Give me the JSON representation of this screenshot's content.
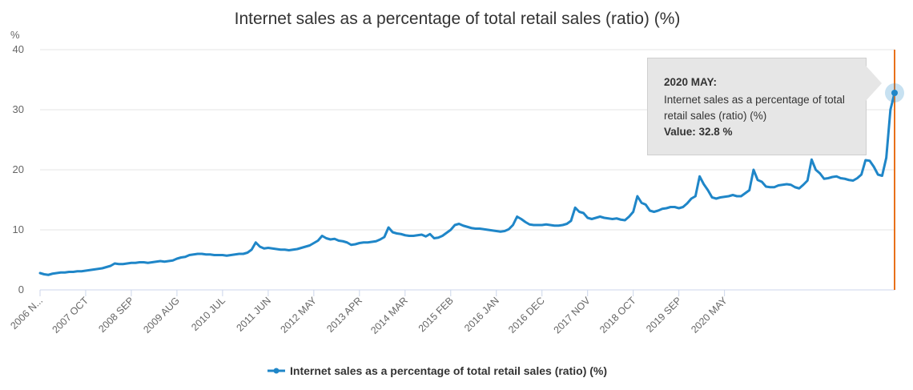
{
  "chart_data": {
    "type": "line",
    "title": "Internet sales as a percentage of total retail sales (ratio) (%)",
    "ylabel": "%",
    "ylim": [
      0,
      40
    ],
    "yticks": [
      0,
      10,
      20,
      30,
      40
    ],
    "grid": true,
    "legend_position": "bottom",
    "xticks": [
      "2006 N...",
      "2007 OCT",
      "2008 SEP",
      "2009 AUG",
      "2010 JUL",
      "2011 JUN",
      "2012 MAY",
      "2013 APR",
      "2014 MAR",
      "2015 FEB",
      "2016 JAN",
      "2016 DEC",
      "2017 NOV",
      "2018 OCT",
      "2019 SEP",
      "2020 MAY"
    ],
    "series": [
      {
        "name": "Internet sales as a percentage of total retail sales (ratio) (%)",
        "color": "#1f86c8",
        "start": "2006 NOV",
        "end": "2020 MAY",
        "values": [
          2.8,
          2.6,
          2.5,
          2.7,
          2.8,
          2.9,
          2.9,
          3.0,
          3.0,
          3.1,
          3.1,
          3.2,
          3.3,
          3.4,
          3.5,
          3.6,
          3.8,
          4.0,
          4.4,
          4.3,
          4.3,
          4.4,
          4.5,
          4.5,
          4.6,
          4.6,
          4.5,
          4.6,
          4.7,
          4.8,
          4.7,
          4.8,
          4.9,
          5.2,
          5.4,
          5.5,
          5.8,
          5.9,
          6.0,
          6.0,
          5.9,
          5.9,
          5.8,
          5.8,
          5.8,
          5.7,
          5.8,
          5.9,
          6.0,
          6.0,
          6.2,
          6.7,
          7.9,
          7.2,
          6.9,
          7.0,
          6.9,
          6.8,
          6.7,
          6.7,
          6.6,
          6.7,
          6.8,
          7.0,
          7.2,
          7.4,
          7.8,
          8.2,
          9.0,
          8.6,
          8.4,
          8.5,
          8.2,
          8.1,
          7.9,
          7.5,
          7.6,
          7.8,
          7.9,
          7.9,
          8.0,
          8.1,
          8.4,
          8.8,
          10.4,
          9.6,
          9.4,
          9.3,
          9.1,
          9.0,
          9.0,
          9.1,
          9.2,
          8.9,
          9.3,
          8.6,
          8.7,
          9.0,
          9.5,
          10.0,
          10.8,
          11.0,
          10.7,
          10.5,
          10.3,
          10.2,
          10.2,
          10.1,
          10.0,
          9.9,
          9.8,
          9.7,
          9.8,
          10.1,
          10.8,
          12.2,
          11.8,
          11.3,
          10.9,
          10.8,
          10.8,
          10.8,
          10.9,
          10.8,
          10.7,
          10.7,
          10.8,
          11.0,
          11.5,
          13.7,
          13.0,
          12.8,
          12.0,
          11.8,
          12.0,
          12.2,
          12.0,
          11.9,
          11.8,
          11.9,
          11.7,
          11.6,
          12.2,
          13.0,
          15.6,
          14.5,
          14.2,
          13.2,
          13.0,
          13.2,
          13.5,
          13.6,
          13.8,
          13.8,
          13.6,
          13.8,
          14.4,
          15.2,
          15.6,
          18.9,
          17.6,
          16.6,
          15.4,
          15.2,
          15.4,
          15.5,
          15.6,
          15.8,
          15.6,
          15.6,
          16.1,
          16.6,
          20.0,
          18.3,
          18.0,
          17.2,
          17.1,
          17.1,
          17.4,
          17.5,
          17.6,
          17.5,
          17.1,
          16.9,
          17.5,
          18.2,
          21.7,
          20.0,
          19.4,
          18.5,
          18.6,
          18.8,
          18.9,
          18.6,
          18.5,
          18.3,
          18.2,
          18.6,
          19.2,
          21.6,
          21.5,
          20.5,
          19.2,
          19.0,
          22.0,
          30.0,
          32.8
        ]
      }
    ],
    "tooltip": {
      "title": "2020 MAY:",
      "label": "Internet sales as a percentage of total retail sales (ratio) (%)",
      "value_text": "Value: 32.8 %"
    },
    "highlight_color": "#e8711a"
  }
}
